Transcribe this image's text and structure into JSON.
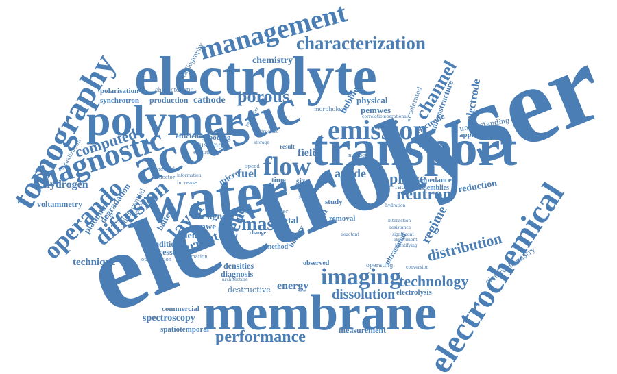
{
  "cloud": {
    "color": "#4a7eb4",
    "words": [
      {
        "id": "electrolyser",
        "text": "electrolyser",
        "weight": 1.0
      },
      {
        "id": "water",
        "text": "water",
        "weight": 0.82
      },
      {
        "id": "membrane",
        "text": "membrane",
        "weight": 0.72
      },
      {
        "id": "electrolyte",
        "text": "electrolyte",
        "weight": 0.7
      },
      {
        "id": "transport",
        "text": "transport",
        "weight": 0.68
      },
      {
        "id": "acoustic",
        "text": "acoustic",
        "weight": 0.64
      },
      {
        "id": "electrochemical",
        "text": "electrochemical",
        "weight": 0.52
      },
      {
        "id": "polymer",
        "text": "polymer",
        "weight": 0.58
      },
      {
        "id": "tomography",
        "text": "tomography",
        "weight": 0.46
      },
      {
        "id": "diagnostic",
        "text": "diagnostic",
        "weight": 0.44
      },
      {
        "id": "emission",
        "text": "emission",
        "weight": 0.4
      },
      {
        "id": "management",
        "text": "management",
        "weight": 0.38
      },
      {
        "id": "characterization",
        "text": "characterization",
        "weight": 0.3
      },
      {
        "id": "operando",
        "text": "operando",
        "weight": 0.33
      },
      {
        "id": "diffusion",
        "text": "diffusion",
        "weight": 0.32
      },
      {
        "id": "flow",
        "text": "flow",
        "weight": 0.34
      },
      {
        "id": "imaging",
        "text": "imaging",
        "weight": 0.32
      },
      {
        "id": "performance",
        "text": "performance",
        "weight": 0.26
      },
      {
        "id": "porous",
        "text": "porous",
        "weight": 0.26
      },
      {
        "id": "channel",
        "text": "channel",
        "weight": 0.26
      },
      {
        "id": "layer",
        "text": "layer",
        "weight": 0.28
      },
      {
        "id": "mass",
        "text": "mass",
        "weight": 0.26
      },
      {
        "id": "cell",
        "text": "cell",
        "weight": 0.28
      },
      {
        "id": "neutron",
        "text": "neutron",
        "weight": 0.22
      },
      {
        "id": "technology",
        "text": "technology",
        "weight": 0.22
      },
      {
        "id": "distribution",
        "text": "distribution",
        "weight": 0.22
      },
      {
        "id": "dissolution",
        "text": "dissolution",
        "weight": 0.2
      },
      {
        "id": "computed",
        "text": "computed",
        "weight": 0.2
      },
      {
        "id": "phase",
        "text": "phase",
        "weight": 0.22
      },
      {
        "id": "regime",
        "text": "regime",
        "weight": 0.2
      },
      {
        "id": "current",
        "text": "current",
        "weight": 0.2
      },
      {
        "id": "chemistry",
        "text": "chemistry",
        "weight": 0.14
      },
      {
        "id": "cathode",
        "text": "cathode",
        "weight": 0.14
      },
      {
        "id": "production",
        "text": "production",
        "weight": 0.12
      },
      {
        "id": "polarisation",
        "text": "polarisation",
        "weight": 0.11
      },
      {
        "id": "synchrotron",
        "text": "synchrotron",
        "weight": 0.11
      },
      {
        "id": "radiography",
        "text": "radiography",
        "weight": 0.09
      },
      {
        "id": "characteristic",
        "text": "characteristic",
        "weight": 0.08
      },
      {
        "id": "physical",
        "text": "physical",
        "weight": 0.13
      },
      {
        "id": "pemwes",
        "text": "pemwes",
        "weight": 0.13
      },
      {
        "id": "microstructure",
        "text": "microstructure",
        "weight": 0.12
      },
      {
        "id": "electrode",
        "text": "electrode",
        "weight": 0.16
      },
      {
        "id": "bubble",
        "text": "bubble",
        "weight": 0.14
      },
      {
        "id": "accelerated",
        "text": "accelerated",
        "weight": 0.1
      },
      {
        "id": "electrode2",
        "text": "electrode",
        "weight": 0.12
      },
      {
        "id": "understanding",
        "text": "understanding",
        "weight": 0.1
      },
      {
        "id": "application",
        "text": "application",
        "weight": 0.11
      },
      {
        "id": "efficiency",
        "text": "efficiency",
        "weight": 0.11
      },
      {
        "id": "flooding",
        "text": "flooding",
        "weight": 0.11
      },
      {
        "id": "flushing",
        "text": "flushing",
        "weight": 0.1
      },
      {
        "id": "hydrogen",
        "text": "hydrogen",
        "weight": 0.16
      },
      {
        "id": "voltammetry",
        "text": "voltammetry",
        "weight": 0.12
      },
      {
        "id": "platinum",
        "text": "platinum",
        "weight": 0.13
      },
      {
        "id": "degradation",
        "text": "degradation",
        "weight": 0.13
      },
      {
        "id": "batterie",
        "text": "batterie",
        "weight": 0.12
      },
      {
        "id": "differential",
        "text": "differential",
        "weight": 0.1
      },
      {
        "id": "fuel",
        "text": "fuel",
        "weight": 0.18
      },
      {
        "id": "anode",
        "text": "anode",
        "weight": 0.18
      },
      {
        "id": "field",
        "text": "field",
        "weight": 0.16
      },
      {
        "id": "micro",
        "text": "micro",
        "weight": 0.13
      },
      {
        "id": "pore",
        "text": "pore",
        "weight": 0.18
      },
      {
        "id": "size",
        "text": "size",
        "weight": 0.12
      },
      {
        "id": "time",
        "text": "time",
        "weight": 0.11
      },
      {
        "id": "reduction",
        "text": "reduction",
        "weight": 0.14
      },
      {
        "id": "impedance",
        "text": "impedance",
        "weight": 0.11
      },
      {
        "id": "assemblies",
        "text": "assemblies",
        "weight": 0.1
      },
      {
        "id": "radiation",
        "text": "radiation",
        "weight": 0.09
      },
      {
        "id": "design",
        "text": "design",
        "weight": 0.14
      },
      {
        "id": "science",
        "text": "science",
        "weight": 0.14
      },
      {
        "id": "pemwe",
        "text": "pemwe",
        "weight": 0.13
      },
      {
        "id": "condition",
        "text": "condition",
        "weight": 0.12
      },
      {
        "id": "processes",
        "text": "processes",
        "weight": 0.12
      },
      {
        "id": "technique",
        "text": "technique",
        "weight": 0.15
      },
      {
        "id": "metal",
        "text": "metal",
        "weight": 0.14
      },
      {
        "id": "foam",
        "text": "foam",
        "weight": 0.14
      },
      {
        "id": "study",
        "text": "study",
        "weight": 0.11
      },
      {
        "id": "removal",
        "text": "removal",
        "weight": 0.11
      },
      {
        "id": "densities",
        "text": "densities",
        "weight": 0.12
      },
      {
        "id": "diagnosis",
        "text": "diagnosis",
        "weight": 0.12
      },
      {
        "id": "energy",
        "text": "energy",
        "weight": 0.16
      },
      {
        "id": "destructive",
        "text": "destructive",
        "weight": 0.11
      },
      {
        "id": "commercial",
        "text": "commercial",
        "weight": 0.11
      },
      {
        "id": "spectroscopy",
        "text": "spectroscopy",
        "weight": 0.14
      },
      {
        "id": "spatiotemporal",
        "text": "spatiotemporal",
        "weight": 0.11
      },
      {
        "id": "measurement",
        "text": "measurement",
        "weight": 0.12
      },
      {
        "id": "electrolysis",
        "text": "electrolysis",
        "weight": 0.11
      },
      {
        "id": "electrochemistry",
        "text": "electrochemistry",
        "weight": 0.11
      },
      {
        "id": "ultrasound",
        "text": "ultrasound",
        "weight": 0.11
      },
      {
        "id": "observed",
        "text": "observed",
        "weight": 0.1
      },
      {
        "id": "battery",
        "text": "battery",
        "weight": 0.11
      },
      {
        "id": "sulfur",
        "text": "sulfur",
        "weight": 0.1
      },
      {
        "id": "method",
        "text": "method",
        "weight": 0.1
      },
      {
        "id": "operating",
        "text": "operating",
        "weight": 0.09
      },
      {
        "id": "morphology",
        "text": "morphology",
        "weight": 0.08
      },
      {
        "id": "visualization",
        "text": "visualization",
        "weight": 0.08
      },
      {
        "id": "renewable",
        "text": "renewable",
        "weight": 0.07
      },
      {
        "id": "optimisation",
        "text": "optimisation",
        "weight": 0.07
      },
      {
        "id": "formation",
        "text": "formation",
        "weight": 0.07
      },
      {
        "id": "architecture",
        "text": "architecture",
        "weight": 0.06
      },
      {
        "id": "collector",
        "text": "collector",
        "weight": 0.07
      },
      {
        "id": "information",
        "text": "information",
        "weight": 0.06
      },
      {
        "id": "increase",
        "text": "increase",
        "weight": 0.07
      },
      {
        "id": "evolution",
        "text": "evolution",
        "weight": 0.07
      },
      {
        "id": "speed",
        "text": "speed",
        "weight": 0.07
      },
      {
        "id": "number",
        "text": "number",
        "weight": 0.07
      },
      {
        "id": "function",
        "text": "function",
        "weight": 0.07
      },
      {
        "id": "interaction",
        "text": "interaction",
        "weight": 0.06
      },
      {
        "id": "resistance",
        "text": "resistance",
        "weight": 0.06
      },
      {
        "id": "significant",
        "text": "significant",
        "weight": 0.06
      },
      {
        "id": "experiment",
        "text": "experiment",
        "weight": 0.06
      },
      {
        "id": "identifying",
        "text": "identifying",
        "weight": 0.06
      },
      {
        "id": "hydration",
        "text": "hydration",
        "weight": 0.06
      },
      {
        "id": "correlation",
        "text": "correlation",
        "weight": 0.06
      },
      {
        "id": "operational",
        "text": "operational",
        "weight": 0.06
      },
      {
        "id": "storage",
        "text": "storage",
        "weight": 0.06
      },
      {
        "id": "result",
        "text": "result",
        "weight": 0.09
      },
      {
        "id": "power",
        "text": "power",
        "weight": 0.07
      },
      {
        "id": "change",
        "text": "change",
        "weight": 0.08
      },
      {
        "id": "reactant",
        "text": "reactant",
        "weight": 0.06
      },
      {
        "id": "conversion",
        "text": "conversion",
        "weight": 0.06
      },
      {
        "id": "device",
        "text": "device",
        "weight": 0.07
      },
      {
        "id": "structure",
        "text": "structure",
        "weight": 0.06
      },
      {
        "id": "parameter",
        "text": "parameter",
        "weight": 0.06
      },
      {
        "id": "analysis",
        "text": "analysis",
        "weight": 0.07
      }
    ]
  }
}
